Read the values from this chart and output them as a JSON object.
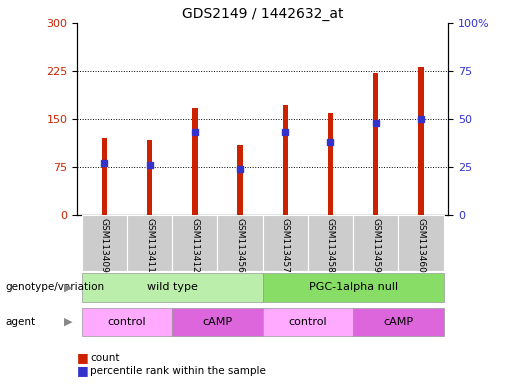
{
  "title": "GDS2149 / 1442632_at",
  "samples": [
    "GSM113409",
    "GSM113411",
    "GSM113412",
    "GSM113456",
    "GSM113457",
    "GSM113458",
    "GSM113459",
    "GSM113460"
  ],
  "counts": [
    120,
    118,
    168,
    110,
    172,
    160,
    222,
    232
  ],
  "percentile_ranks": [
    27,
    26,
    43,
    24,
    43,
    38,
    48,
    50
  ],
  "ylim_left": [
    0,
    300
  ],
  "ylim_right": [
    0,
    100
  ],
  "yticks_left": [
    0,
    75,
    150,
    225,
    300
  ],
  "yticks_right": [
    0,
    25,
    50,
    75,
    100
  ],
  "bar_color": "#cc2200",
  "dot_color": "#3333cc",
  "bar_width": 0.12,
  "genotype_groups": [
    {
      "label": "wild type",
      "start": 0,
      "end": 4,
      "color": "#bbeeaa"
    },
    {
      "label": "PGC-1alpha null",
      "start": 4,
      "end": 8,
      "color": "#88dd66"
    }
  ],
  "agent_groups": [
    {
      "label": "control",
      "start": 0,
      "end": 2,
      "color": "#ffaaff"
    },
    {
      "label": "cAMP",
      "start": 2,
      "end": 4,
      "color": "#dd66dd"
    },
    {
      "label": "control",
      "start": 4,
      "end": 6,
      "color": "#ffaaff"
    },
    {
      "label": "cAMP",
      "start": 6,
      "end": 8,
      "color": "#dd66dd"
    }
  ],
  "legend_count_color": "#cc2200",
  "legend_pct_color": "#3333cc",
  "xlabel_area_bg": "#cccccc",
  "genotype_label": "genotype/variation",
  "agent_label": "agent"
}
